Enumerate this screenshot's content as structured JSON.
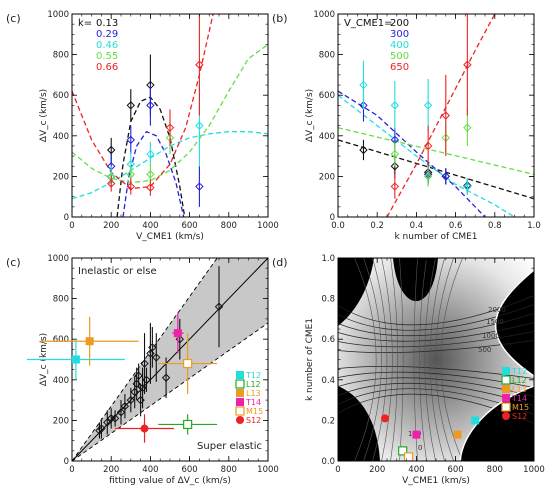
{
  "chart_data": [
    {
      "panel": "(c)",
      "type": "scatter",
      "xlabel": "V_CME1 (km/s)",
      "ylabel": "ΔV_c (km/s)",
      "xlim": [
        0,
        1000
      ],
      "ylim": [
        0,
        1000
      ],
      "xticks": [
        "0",
        "200",
        "400",
        "600",
        "800",
        "1000"
      ],
      "yticks": [
        "0",
        "200",
        "400",
        "600",
        "800",
        "1000"
      ],
      "legend_header": "k=",
      "legend": [
        {
          "label": "0.13",
          "color": "#111111"
        },
        {
          "label": "0.29",
          "color": "#2222dd"
        },
        {
          "label": "0.46",
          "color": "#22dddd"
        },
        {
          "label": "0.55",
          "color": "#66dd44"
        },
        {
          "label": "0.66",
          "color": "#ee2222"
        }
      ],
      "series": [
        {
          "color": "#111111",
          "points": [
            [
              200,
              330,
              60
            ],
            [
              300,
              550,
              80
            ],
            [
              400,
              650,
              150
            ]
          ]
        },
        {
          "color": "#2222dd",
          "points": [
            [
              200,
              250,
              60
            ],
            [
              300,
              380,
              70
            ],
            [
              400,
              550,
              100
            ],
            [
              650,
              150,
              100
            ]
          ]
        },
        {
          "color": "#22dddd",
          "points": [
            [
              200,
              200,
              50
            ],
            [
              300,
              260,
              60
            ],
            [
              400,
              310,
              60
            ],
            [
              650,
              450,
              200
            ]
          ]
        },
        {
          "color": "#66dd44",
          "points": [
            [
              200,
              195,
              30
            ],
            [
              300,
              210,
              40
            ],
            [
              400,
              210,
              50
            ],
            [
              500,
              390,
              80
            ]
          ]
        },
        {
          "color": "#ee2222",
          "points": [
            [
              200,
              165,
              40
            ],
            [
              300,
              150,
              40
            ],
            [
              400,
              145,
              40
            ],
            [
              500,
              440,
              90
            ],
            [
              650,
              750,
              250
            ]
          ]
        }
      ],
      "fits": [
        {
          "color": "#111111",
          "pts": [
            [
              230,
              0
            ],
            [
              260,
              260
            ],
            [
              300,
              470
            ],
            [
              350,
              570
            ],
            [
              400,
              590
            ],
            [
              450,
              530
            ],
            [
              500,
              390
            ],
            [
              550,
              150
            ],
            [
              575,
              0
            ]
          ]
        },
        {
          "color": "#2222dd",
          "pts": [
            [
              260,
              0
            ],
            [
              290,
              200
            ],
            [
              330,
              350
            ],
            [
              380,
              420
            ],
            [
              430,
              400
            ],
            [
              480,
              310
            ],
            [
              530,
              170
            ],
            [
              570,
              0
            ]
          ]
        },
        {
          "color": "#22dddd",
          "pts": [
            [
              0,
              90
            ],
            [
              100,
              120
            ],
            [
              200,
              170
            ],
            [
              300,
              230
            ],
            [
              400,
              290
            ],
            [
              500,
              350
            ],
            [
              600,
              390
            ],
            [
              700,
              410
            ],
            [
              800,
              420
            ],
            [
              900,
              420
            ],
            [
              1000,
              410
            ]
          ]
        },
        {
          "color": "#66dd44",
          "pts": [
            [
              0,
              320
            ],
            [
              100,
              240
            ],
            [
              200,
              190
            ],
            [
              300,
              170
            ],
            [
              400,
              180
            ],
            [
              500,
              230
            ],
            [
              600,
              320
            ],
            [
              700,
              450
            ],
            [
              800,
              620
            ],
            [
              900,
              780
            ],
            [
              1000,
              850
            ]
          ]
        },
        {
          "color": "#ee2222",
          "pts": [
            [
              0,
              620
            ],
            [
              100,
              380
            ],
            [
              200,
              220
            ],
            [
              300,
              140
            ],
            [
              400,
              150
            ],
            [
              500,
              260
            ],
            [
              580,
              440
            ],
            [
              650,
              700
            ],
            [
              720,
              1000
            ]
          ]
        }
      ]
    },
    {
      "panel": "(b)",
      "type": "scatter",
      "xlabel": "k number of CME1",
      "ylabel": "ΔV_c (km/s)",
      "xlim": [
        0,
        1
      ],
      "ylim": [
        0,
        1000
      ],
      "xticks": [
        "0.0",
        "0.2",
        "0.4",
        "0.6",
        "0.8",
        "1.0"
      ],
      "yticks": [
        "0",
        "200",
        "400",
        "600",
        "800",
        "1000"
      ],
      "legend_header": "V_CME1=",
      "legend": [
        {
          "label": "200",
          "color": "#111111"
        },
        {
          "label": "300",
          "color": "#2222dd"
        },
        {
          "label": "400",
          "color": "#22dddd"
        },
        {
          "label": "500",
          "color": "#66dd44"
        },
        {
          "label": "650",
          "color": "#ee2222"
        }
      ],
      "series": [
        {
          "color": "#111111",
          "points": [
            [
              0.13,
              330,
              50
            ],
            [
              0.29,
              250,
              60
            ],
            [
              0.46,
              220,
              50
            ],
            [
              0.55,
              200,
              40
            ],
            [
              0.66,
              155,
              30
            ]
          ]
        },
        {
          "color": "#2222dd",
          "points": [
            [
              0.13,
              550,
              80
            ],
            [
              0.29,
              380,
              60
            ],
            [
              0.46,
              210,
              50
            ],
            [
              0.55,
              200,
              40
            ],
            [
              0.66,
              150,
              40
            ]
          ]
        },
        {
          "color": "#22dddd",
          "points": [
            [
              0.13,
              650,
              120
            ],
            [
              0.29,
              550,
              120
            ],
            [
              0.46,
              550,
              130
            ],
            [
              0.66,
              150,
              40
            ]
          ]
        },
        {
          "color": "#66dd44",
          "points": [
            [
              0.29,
              310,
              60
            ],
            [
              0.46,
              200,
              50
            ],
            [
              0.55,
              390,
              80
            ],
            [
              0.66,
              440,
              90
            ]
          ]
        },
        {
          "color": "#ee2222",
          "points": [
            [
              0.29,
              150,
              60
            ],
            [
              0.46,
              350,
              100
            ],
            [
              0.55,
              500,
              200
            ],
            [
              0.66,
              750,
              250
            ]
          ]
        }
      ],
      "fits": [
        {
          "color": "#111111",
          "pts": [
            [
              0.0,
              380
            ],
            [
              1.0,
              90
            ]
          ]
        },
        {
          "color": "#2222dd",
          "pts": [
            [
              0.0,
              620
            ],
            [
              0.2,
              500
            ],
            [
              0.4,
              320
            ],
            [
              0.6,
              150
            ],
            [
              0.75,
              0
            ]
          ]
        },
        {
          "color": "#22dddd",
          "pts": [
            [
              0.0,
              600
            ],
            [
              0.2,
              450
            ],
            [
              0.4,
              300
            ],
            [
              0.6,
              160
            ],
            [
              0.8,
              60
            ],
            [
              0.9,
              0
            ]
          ]
        },
        {
          "color": "#66dd44",
          "pts": [
            [
              0.0,
              440
            ],
            [
              1.0,
              210
            ]
          ]
        },
        {
          "color": "#ee2222",
          "pts": [
            [
              0.25,
              0
            ],
            [
              0.4,
              260
            ],
            [
              0.55,
              540
            ],
            [
              0.7,
              820
            ],
            [
              0.8,
              1000
            ]
          ]
        }
      ]
    },
    {
      "panel": "(c)",
      "type": "scatter",
      "xlabel": "fitting value of ΔV_c (km/s)",
      "ylabel": "ΔV_c (km/s)",
      "xlim": [
        0,
        1000
      ],
      "ylim": [
        0,
        1000
      ],
      "xticks": [
        "0",
        "200",
        "400",
        "600",
        "800",
        "1000"
      ],
      "yticks": [
        "0",
        "200",
        "400",
        "600",
        "800",
        "1000"
      ],
      "annotations": [
        "Inelastic or else",
        "Super elastic"
      ],
      "band_upper": [
        [
          0,
          0
        ],
        [
          1000,
          1350
        ]
      ],
      "band_lower": [
        [
          0,
          0
        ],
        [
          1000,
          680
        ]
      ],
      "black_points": [
        [
          140,
          150,
          40
        ],
        [
          150,
          160,
          50
        ],
        [
          180,
          190,
          60
        ],
        [
          200,
          210,
          50
        ],
        [
          220,
          210,
          40
        ],
        [
          250,
          240,
          60
        ],
        [
          270,
          270,
          60
        ],
        [
          300,
          300,
          60
        ],
        [
          320,
          340,
          80
        ],
        [
          330,
          380,
          80
        ],
        [
          340,
          420,
          60
        ],
        [
          350,
          300,
          80
        ],
        [
          360,
          360,
          100
        ],
        [
          370,
          480,
          150
        ],
        [
          380,
          400,
          60
        ],
        [
          400,
          530,
          150
        ],
        [
          410,
          560,
          100
        ],
        [
          430,
          510,
          120
        ],
        [
          480,
          410,
          100
        ],
        [
          550,
          600,
          100
        ],
        [
          750,
          760,
          200
        ]
      ],
      "colored_points": [
        {
          "label": "T12",
          "color": "#22dddd",
          "marker": "filled-square",
          "x": 20,
          "y": 500,
          "xerr": 250,
          "yerr": 100
        },
        {
          "label": "L12",
          "color": "#22aa22",
          "marker": "open-square",
          "x": 590,
          "y": 180,
          "xerr": 150,
          "yerr": 50
        },
        {
          "label": "L13",
          "color": "#ee9922",
          "marker": "filled-square",
          "x": 90,
          "y": 590,
          "xerr": 250,
          "yerr": 120
        },
        {
          "label": "T14",
          "color": "#ee22aa",
          "marker": "filled-square",
          "x": 540,
          "y": 630,
          "xerr": 30,
          "yerr": 100
        },
        {
          "label": "M15",
          "color": "#ee9922",
          "marker": "open-square",
          "x": 590,
          "y": 480,
          "xerr": 150,
          "yerr": 150
        },
        {
          "label": "S12",
          "color": "#ee2222",
          "marker": "filled-circle",
          "x": 370,
          "y": 160,
          "xerr": 150,
          "yerr": 70
        }
      ]
    },
    {
      "panel": "(d)",
      "type": "heatmap",
      "xlabel": "V_CME1 (km/s)",
      "ylabel": "k number of CME1",
      "xlim": [
        0,
        1000
      ],
      "ylim": [
        0,
        1
      ],
      "xticks": [
        "0",
        "200",
        "400",
        "600",
        "800",
        "1000"
      ],
      "yticks": [
        "0.0",
        "0.2",
        "0.4",
        "0.6",
        "0.8",
        "1.0"
      ],
      "contour_labels": [
        "2000",
        "1500",
        "1000",
        "500",
        "100",
        "0"
      ],
      "points": [
        {
          "label": "T12",
          "color": "#22dddd",
          "marker": "filled-square",
          "x": 700,
          "y": 0.2
        },
        {
          "label": "L12",
          "color": "#22aa22",
          "marker": "open-square",
          "x": 330,
          "y": 0.05
        },
        {
          "label": "L13",
          "color": "#ee9922",
          "marker": "filled-square",
          "x": 610,
          "y": 0.13
        },
        {
          "label": "T14",
          "color": "#ee22aa",
          "marker": "filled-square",
          "x": 400,
          "y": 0.13
        },
        {
          "label": "M15",
          "color": "#ee9922",
          "marker": "open-square",
          "x": 360,
          "y": 0.02
        },
        {
          "label": "S12",
          "color": "#ee2222",
          "marker": "filled-circle",
          "x": 240,
          "y": 0.21
        }
      ]
    }
  ]
}
